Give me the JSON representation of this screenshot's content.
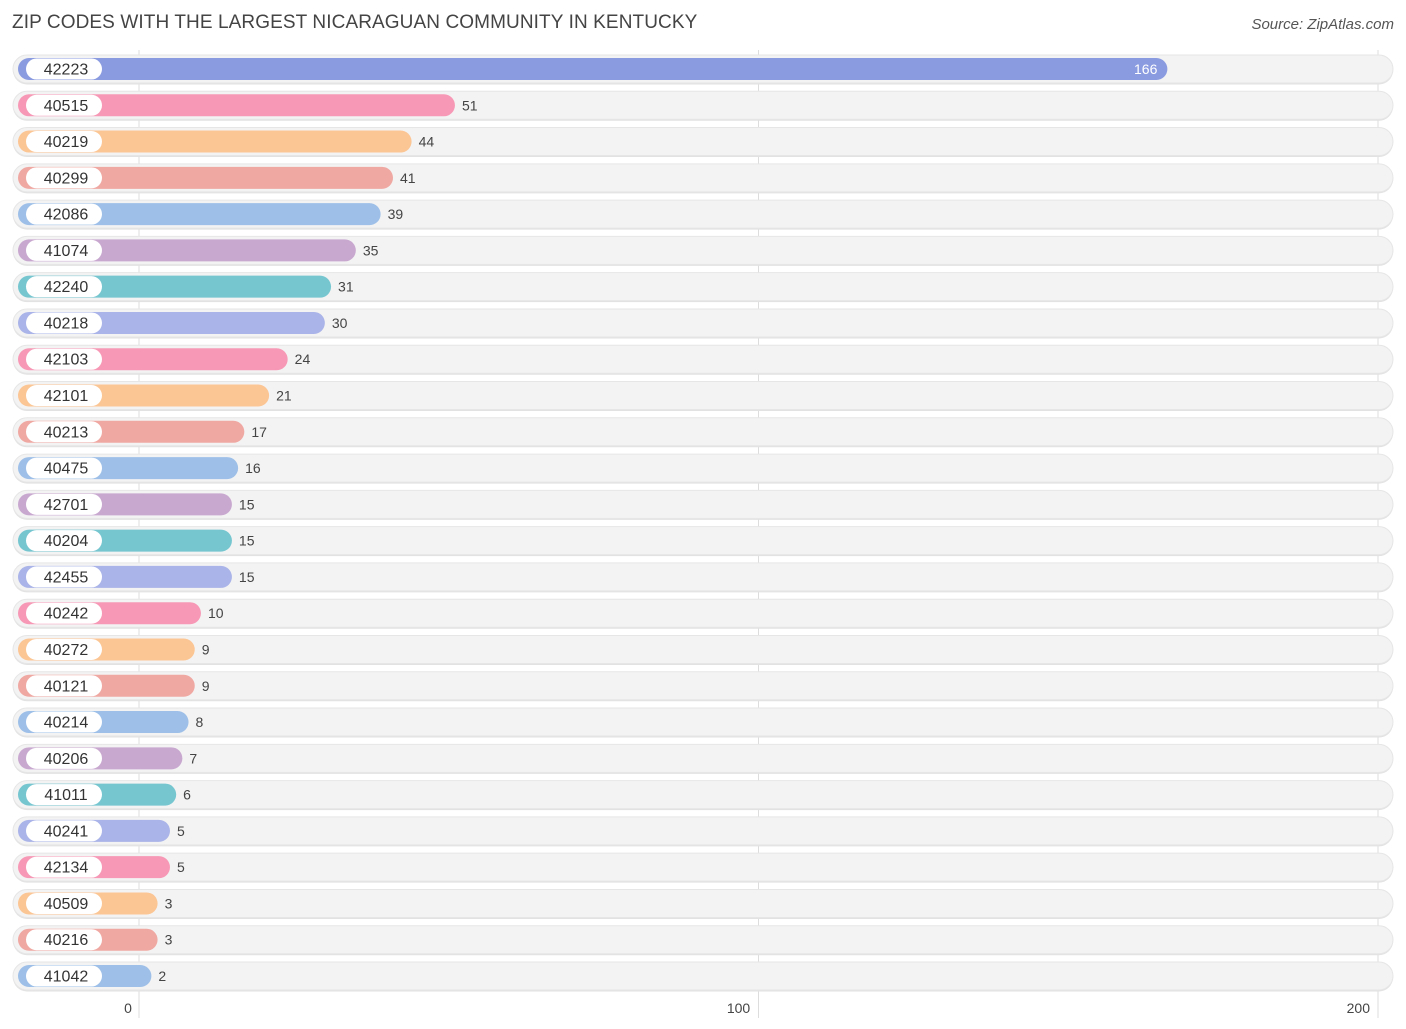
{
  "header": {
    "title": "ZIP CODES WITH THE LARGEST NICARAGUAN COMMUNITY IN KENTUCKY",
    "source": "Source: ZipAtlas.com"
  },
  "chart_data": {
    "type": "bar",
    "orientation": "horizontal",
    "title": "ZIP CODES WITH THE LARGEST NICARAGUAN COMMUNITY IN KENTUCKY",
    "xlim": [
      0,
      200
    ],
    "ticks": [
      0,
      100,
      200
    ],
    "grid": true,
    "categories": [
      "42223",
      "40515",
      "40219",
      "40299",
      "42086",
      "41074",
      "42240",
      "40218",
      "42103",
      "42101",
      "40213",
      "40475",
      "42701",
      "40204",
      "42455",
      "40242",
      "40272",
      "40121",
      "40214",
      "40206",
      "41011",
      "40241",
      "42134",
      "40509",
      "40216",
      "41042"
    ],
    "values": [
      166,
      51,
      44,
      41,
      39,
      35,
      31,
      30,
      24,
      21,
      17,
      16,
      15,
      15,
      15,
      10,
      9,
      9,
      8,
      7,
      6,
      5,
      5,
      3,
      3,
      2
    ],
    "colors": [
      "#8b9be0",
      "#f799b6",
      "#fcc594",
      "#f0a8a3",
      "#9ec0e8",
      "#c9a8d0",
      "#76c6d0",
      "#aab4e8",
      "#f799b6",
      "#fcc594",
      "#f0a8a3",
      "#9ec0e8",
      "#c9a8d0",
      "#76c6d0",
      "#aab4e8",
      "#f799b6",
      "#fcc594",
      "#f0a8a3",
      "#9ec0e8",
      "#c9a8d0",
      "#76c6d0",
      "#aab4e8",
      "#f799b6",
      "#fcc594",
      "#f0a8a3",
      "#9ec0e8"
    ]
  }
}
